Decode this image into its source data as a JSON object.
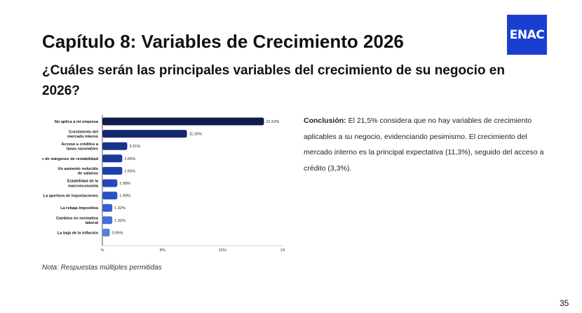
{
  "logo": "ENAC",
  "title": "Capítulo 8: Variables de Crecimiento 2026",
  "subtitle": "¿Cuáles serán las principales variables del crecimiento de su negocio en 2026?",
  "conclusion": {
    "label": "Conclusión:",
    "text": " El 21,5% considera que no hay variables de crecimiento aplicables a su negocio, evidenciando pesimismo. El crecimiento del mercado interno es la principal expectativa (11,3%), seguido del acceso a crédito (3,3%)."
  },
  "note": "Nota: Respuestas múltiples permitidas",
  "page_number": "35",
  "chart_data": {
    "type": "bar",
    "orientation": "horizontal",
    "categories": [
      [
        "No aplica a mi empresa"
      ],
      [
        "Crecimiento del",
        "mercado interno"
      ],
      [
        "Acceso a créditos a",
        "tasas razonables"
      ],
      [
        "Aumento de márgenes de rentabilidad"
      ],
      [
        "Un aumento reducido",
        "de salarios"
      ],
      [
        "Estabilidad de la",
        "macroeconomía"
      ],
      [
        "La apertura de importaciones"
      ],
      [
        "La rebaja impositiva"
      ],
      [
        "Cambios en normativa",
        "laboral"
      ],
      [
        "La baja de la inflación"
      ]
    ],
    "values": [
      21.52,
      11.26,
      3.31,
      2.65,
      2.65,
      1.99,
      1.99,
      1.32,
      1.32,
      0.99
    ],
    "value_labels": [
      "21.52%",
      "11.26%",
      "3.31%",
      "2.65%",
      "2.65%",
      "1.99%",
      "1.99%",
      "1.32%",
      "1.32%",
      "0.99%"
    ],
    "colors": [
      "#0f1d4d",
      "#14296e",
      "#1a3486",
      "#1c3a99",
      "#1f41aa",
      "#2448bb",
      "#2a52c6",
      "#3560cf",
      "#4570d6",
      "#5580db"
    ],
    "xlim": [
      0,
      24
    ],
    "xticks": [
      0,
      8,
      16,
      24
    ],
    "xtick_labels": [
      "%",
      "8%",
      "16%",
      "24"
    ],
    "grid": false
  }
}
